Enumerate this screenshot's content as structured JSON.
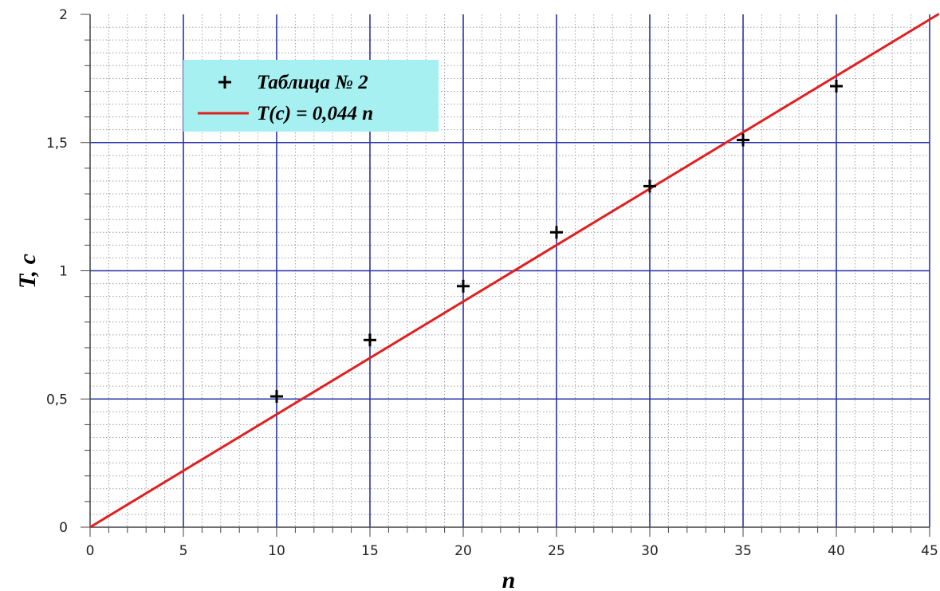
{
  "chart_data": {
    "type": "scatter",
    "xlabel": "n",
    "ylabel": "T, c",
    "xlim": [
      0,
      45
    ],
    "ylim": [
      0,
      2
    ],
    "x_ticks": [
      0,
      5,
      10,
      15,
      20,
      25,
      30,
      35,
      40,
      45
    ],
    "x_tick_labels": [
      "0",
      "5",
      "10",
      "15",
      "20",
      "25",
      "30",
      "35",
      "40",
      "45"
    ],
    "y_ticks": [
      0,
      0.5,
      1,
      1.5,
      2
    ],
    "y_tick_labels": [
      "0",
      "0,5",
      "1",
      "1,5",
      "2"
    ],
    "grid": true,
    "minor_grid": true,
    "legend_position": "top-left",
    "series": [
      {
        "name": "Таблица № 2",
        "kind": "points",
        "marker": "plus",
        "color": "#000000",
        "x": [
          10,
          15,
          20,
          25,
          30,
          35,
          40
        ],
        "y": [
          0.51,
          0.73,
          0.94,
          1.15,
          1.33,
          1.51,
          1.72
        ]
      },
      {
        "name": "T(c) = 0,044 n",
        "kind": "line",
        "color": "#e02020",
        "slope": 0.044,
        "x": [
          0,
          45.5
        ],
        "y": [
          0,
          2.002
        ]
      }
    ],
    "colors": {
      "major_grid": "#2a33a8",
      "minor_grid": "#9aa0a6",
      "legend_background": "#a6f0f2"
    }
  }
}
